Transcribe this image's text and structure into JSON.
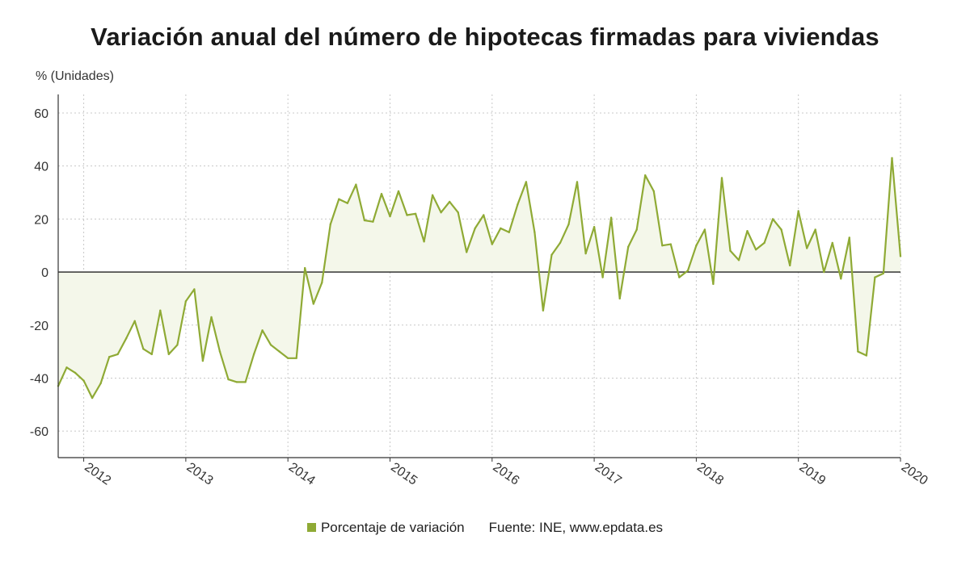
{
  "title": "Variación anual del número de hipotecas firmadas para viviendas",
  "unit_label": "% (Unidades)",
  "legend": {
    "series_label": "Porcentaje de variación",
    "source": "Fuente: INE, www.epdata.es"
  },
  "colors": {
    "line": "#8faa35",
    "fill": "#f4f7ea",
    "grid": "#c8c8c8",
    "zero": "#222222"
  },
  "chart_data": {
    "type": "area",
    "title": "Variación anual del número de hipotecas firmadas para viviendas",
    "ylabel": "% (Unidades)",
    "ylim": [
      -70,
      67
    ],
    "yticks": [
      -60,
      -40,
      -20,
      0,
      20,
      40,
      60
    ],
    "grid": true,
    "legend_position": "bottom",
    "year_ticks": [
      "2012",
      "2013",
      "2014",
      "2015",
      "2016",
      "2017",
      "2018",
      "2019",
      "2020"
    ],
    "x_start": "2011-10",
    "x_end": "2020-01",
    "series": [
      {
        "name": "Porcentaje de variación",
        "values": [
          -43,
          -36,
          -38,
          -41,
          -47.5,
          -42,
          -32,
          -31,
          -25,
          -18.5,
          -29,
          -31,
          -14.5,
          -31,
          -27.5,
          -11,
          -6.5,
          -33.5,
          -17,
          -30,
          -40.5,
          -41.5,
          -41.5,
          -31,
          -22,
          -27.5,
          -30,
          -32.5,
          -32.5,
          1.5,
          -12,
          -4,
          18,
          27.5,
          26,
          33,
          19.5,
          19,
          29.5,
          21,
          30.5,
          21.5,
          22,
          11.5,
          29,
          22.5,
          26.5,
          22.5,
          7.5,
          16.5,
          21.5,
          10.5,
          16.5,
          15,
          25.5,
          34,
          15,
          -14.5,
          6.5,
          11,
          18,
          34,
          7,
          17,
          -2,
          20.5,
          -10,
          9.5,
          16,
          36.5,
          30.5,
          10,
          10.5,
          -2,
          0.5,
          10,
          16,
          -4.5,
          35.5,
          8,
          4.5,
          15.5,
          8.5,
          11,
          20,
          16,
          2.5,
          23,
          9,
          16,
          0,
          11,
          -2.5,
          13,
          -30,
          -31.5,
          -2,
          -0.5,
          43,
          6
        ]
      }
    ]
  }
}
